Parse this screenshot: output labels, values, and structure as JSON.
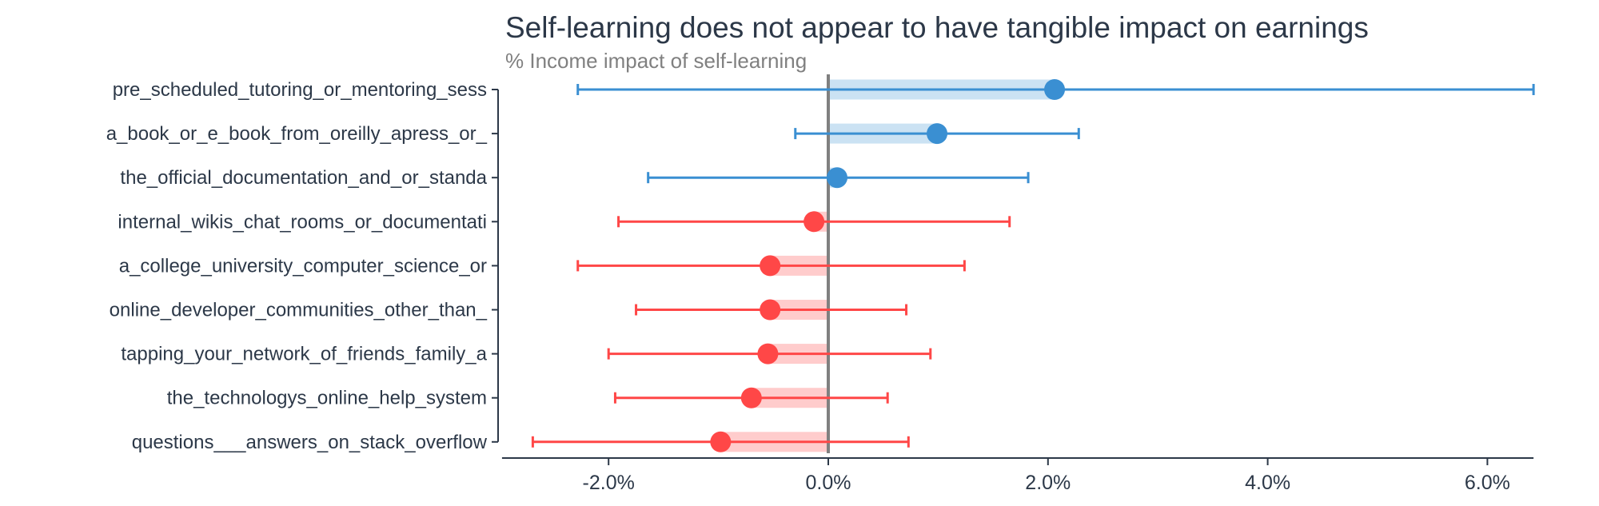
{
  "chart_data": {
    "type": "scatter",
    "subtype": "dot-with-error-bars",
    "title": "Self-learning does not appear to have tangible impact on earnings",
    "subtitle": "% Income impact of self-learning",
    "xlabel": "",
    "ylabel": "",
    "xlim": [
      -2.97,
      6.42
    ],
    "xticks": [
      -2,
      0,
      2,
      4,
      6
    ],
    "xtick_labels": [
      "-2.0%",
      "0.0%",
      "2.0%",
      "4.0%",
      "6.0%"
    ],
    "grid": false,
    "reference_line": 0,
    "colors": {
      "positive": "#3a8fd2",
      "positive_band": "#cbe2f3",
      "negative": "#ff4747",
      "negative_band": "#ffcccc",
      "zero_line": "#808080",
      "text": "#2c3848"
    },
    "categories": [
      "pre_scheduled_tutoring_or_mentoring_sess",
      "a_book_or_e_book_from_oreilly_apress_or_",
      "the_official_documentation_and_or_standa",
      "internal_wikis_chat_rooms_or_documentati",
      "a_college_university_computer_science_or",
      "online_developer_communities_other_than_",
      "tapping_your_network_of_friends_family_a",
      "the_technologys_online_help_system",
      "questions___answers_on_stack_overflow"
    ],
    "values": [
      2.06,
      0.99,
      0.08,
      -0.13,
      -0.53,
      -0.53,
      -0.55,
      -0.7,
      -0.98
    ],
    "ci_low": [
      -2.28,
      -0.3,
      -1.64,
      -1.91,
      -2.28,
      -1.75,
      -2.0,
      -1.94,
      -2.69
    ],
    "ci_high": [
      6.42,
      2.28,
      1.82,
      1.65,
      1.24,
      0.71,
      0.93,
      0.54,
      0.73
    ]
  }
}
